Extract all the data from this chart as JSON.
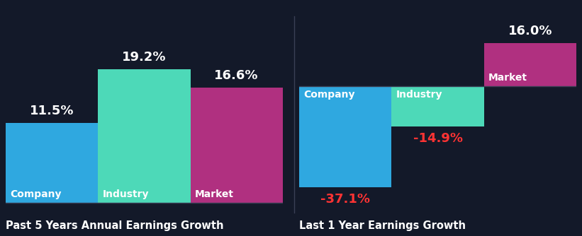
{
  "background_color": "#131929",
  "left_title": "Past 5 Years Annual Earnings Growth",
  "right_title": "Last 1 Year Earnings Growth",
  "left_bars": [
    {
      "label": "Company",
      "value": 11.5,
      "color": "#2fa8e0"
    },
    {
      "label": "Industry",
      "value": 19.2,
      "color": "#4dd9b8"
    },
    {
      "label": "Market",
      "value": 16.6,
      "color": "#b03080"
    }
  ],
  "right_bars": [
    {
      "label": "Company",
      "value": -37.1,
      "color": "#2fa8e0"
    },
    {
      "label": "Industry",
      "value": -14.9,
      "color": "#4dd9b8"
    },
    {
      "label": "Market",
      "value": 16.0,
      "color": "#b03080"
    }
  ],
  "positive_value_color": "#ffffff",
  "negative_value_color": "#ff3333",
  "bar_label_color": "#ffffff",
  "title_color": "#ffffff",
  "axis_line_color": "#3a3f55",
  "title_fontsize": 10.5,
  "value_fontsize": 13,
  "bar_label_fontsize": 10
}
